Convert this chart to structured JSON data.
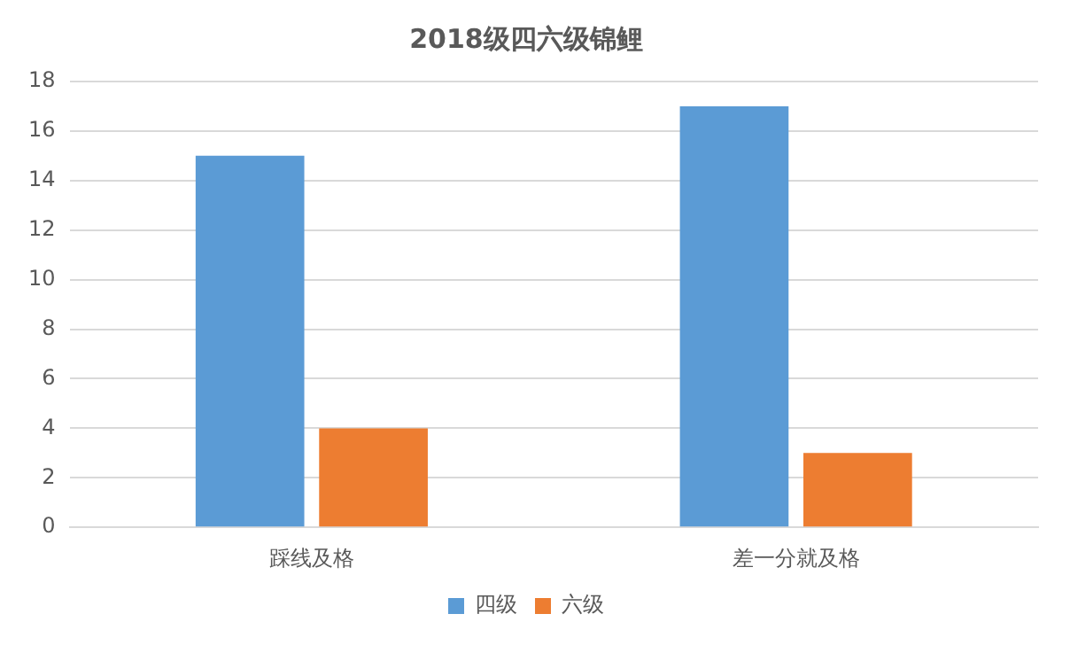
{
  "chart_data": {
    "type": "bar",
    "title": "2018级四六级锦鲤",
    "categories": [
      "踩线及格",
      "差一分就及格"
    ],
    "series": [
      {
        "name": "四级",
        "color": "#5b9bd5",
        "values": [
          15,
          17
        ]
      },
      {
        "name": "六级",
        "color": "#ed7d31",
        "values": [
          4,
          3
        ]
      }
    ],
    "ylim": [
      0,
      18
    ],
    "yticks": [
      0,
      2,
      4,
      6,
      8,
      10,
      12,
      14,
      16,
      18
    ],
    "grid": "y",
    "legend": "bottom"
  }
}
